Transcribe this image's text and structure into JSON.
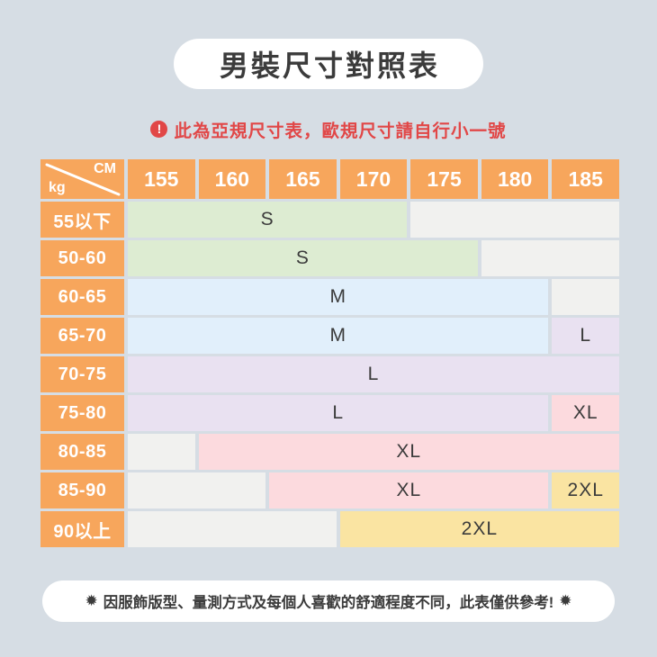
{
  "title": "男裝尺寸對照表",
  "warning": {
    "icon_glyph": "!",
    "text": "此為亞規尺寸表，歐規尺寸請自行小一號"
  },
  "table": {
    "corner": {
      "top_right": "CM",
      "bottom_left": "kg"
    },
    "columns": [
      "155",
      "160",
      "165",
      "170",
      "175",
      "180",
      "185"
    ],
    "rows": [
      {
        "label": "55以下",
        "segments": [
          {
            "size": "S",
            "span": 4,
            "color": "green"
          },
          {
            "size": "",
            "span": 3,
            "color": "empty"
          }
        ]
      },
      {
        "label": "50-60",
        "segments": [
          {
            "size": "S",
            "span": 5,
            "color": "green"
          },
          {
            "size": "",
            "span": 2,
            "color": "empty"
          }
        ]
      },
      {
        "label": "60-65",
        "segments": [
          {
            "size": "M",
            "span": 6,
            "color": "blue"
          },
          {
            "size": "",
            "span": 1,
            "color": "empty"
          }
        ]
      },
      {
        "label": "65-70",
        "segments": [
          {
            "size": "M",
            "span": 6,
            "color": "blue"
          },
          {
            "size": "L",
            "span": 1,
            "color": "purple"
          }
        ]
      },
      {
        "label": "70-75",
        "segments": [
          {
            "size": "L",
            "span": 7,
            "color": "purple"
          }
        ]
      },
      {
        "label": "75-80",
        "segments": [
          {
            "size": "L",
            "span": 6,
            "color": "purple"
          },
          {
            "size": "XL",
            "span": 1,
            "color": "pink"
          }
        ]
      },
      {
        "label": "80-85",
        "segments": [
          {
            "size": "",
            "span": 1,
            "color": "empty"
          },
          {
            "size": "XL",
            "span": 6,
            "color": "pink"
          }
        ]
      },
      {
        "label": "85-90",
        "segments": [
          {
            "size": "",
            "span": 2,
            "color": "empty"
          },
          {
            "size": "XL",
            "span": 4,
            "color": "pink"
          },
          {
            "size": "2XL",
            "span": 1,
            "color": "yellow"
          }
        ]
      },
      {
        "label": "90以上",
        "segments": [
          {
            "size": "",
            "span": 3,
            "color": "empty"
          },
          {
            "size": "2XL",
            "span": 4,
            "color": "yellow"
          }
        ]
      }
    ]
  },
  "footer": {
    "star": "✹",
    "text": "因服飾版型、量測方式及每個人喜歡的舒適程度不同，此表僅供參考!"
  },
  "colors": {
    "page_bg": "#D6DDE4",
    "orange": "#F7A65C",
    "green": "#DDECD2",
    "blue": "#E1EFFB",
    "purple": "#E9E1F1",
    "pink": "#FCDADE",
    "yellow": "#FAE4A2",
    "empty": "#F1F1EF",
    "red": "#E14747",
    "dark": "#3B3B3B"
  },
  "chart_data": {
    "type": "table",
    "title": "男裝尺寸對照表",
    "note": "此為亞規尺寸表，歐規尺寸請自行小一號",
    "disclaimer": "因服飾版型、量測方式及每個人喜歡的舒適程度不同，此表僅供參考!",
    "column_axis_label": "CM",
    "row_axis_label": "kg",
    "columns_cm": [
      155,
      160,
      165,
      170,
      175,
      180,
      185
    ],
    "rows_kg": [
      "55以下",
      "50-60",
      "60-65",
      "65-70",
      "70-75",
      "75-80",
      "80-85",
      "85-90",
      "90以上"
    ],
    "matrix": [
      [
        "S",
        "S",
        "S",
        "S",
        "",
        "",
        ""
      ],
      [
        "S",
        "S",
        "S",
        "S",
        "S",
        "",
        ""
      ],
      [
        "M",
        "M",
        "M",
        "M",
        "M",
        "M",
        ""
      ],
      [
        "M",
        "M",
        "M",
        "M",
        "M",
        "M",
        "L"
      ],
      [
        "L",
        "L",
        "L",
        "L",
        "L",
        "L",
        "L"
      ],
      [
        "L",
        "L",
        "L",
        "L",
        "L",
        "L",
        "XL"
      ],
      [
        "",
        "XL",
        "XL",
        "XL",
        "XL",
        "XL",
        "XL"
      ],
      [
        "",
        "",
        "XL",
        "XL",
        "XL",
        "XL",
        "2XL"
      ],
      [
        "",
        "",
        "",
        "2XL",
        "2XL",
        "2XL",
        "2XL"
      ]
    ],
    "size_color_legend": {
      "S": "#DDECD2",
      "M": "#E1EFFB",
      "L": "#E9E1F1",
      "XL": "#FCDADE",
      "2XL": "#FAE4A2"
    }
  }
}
